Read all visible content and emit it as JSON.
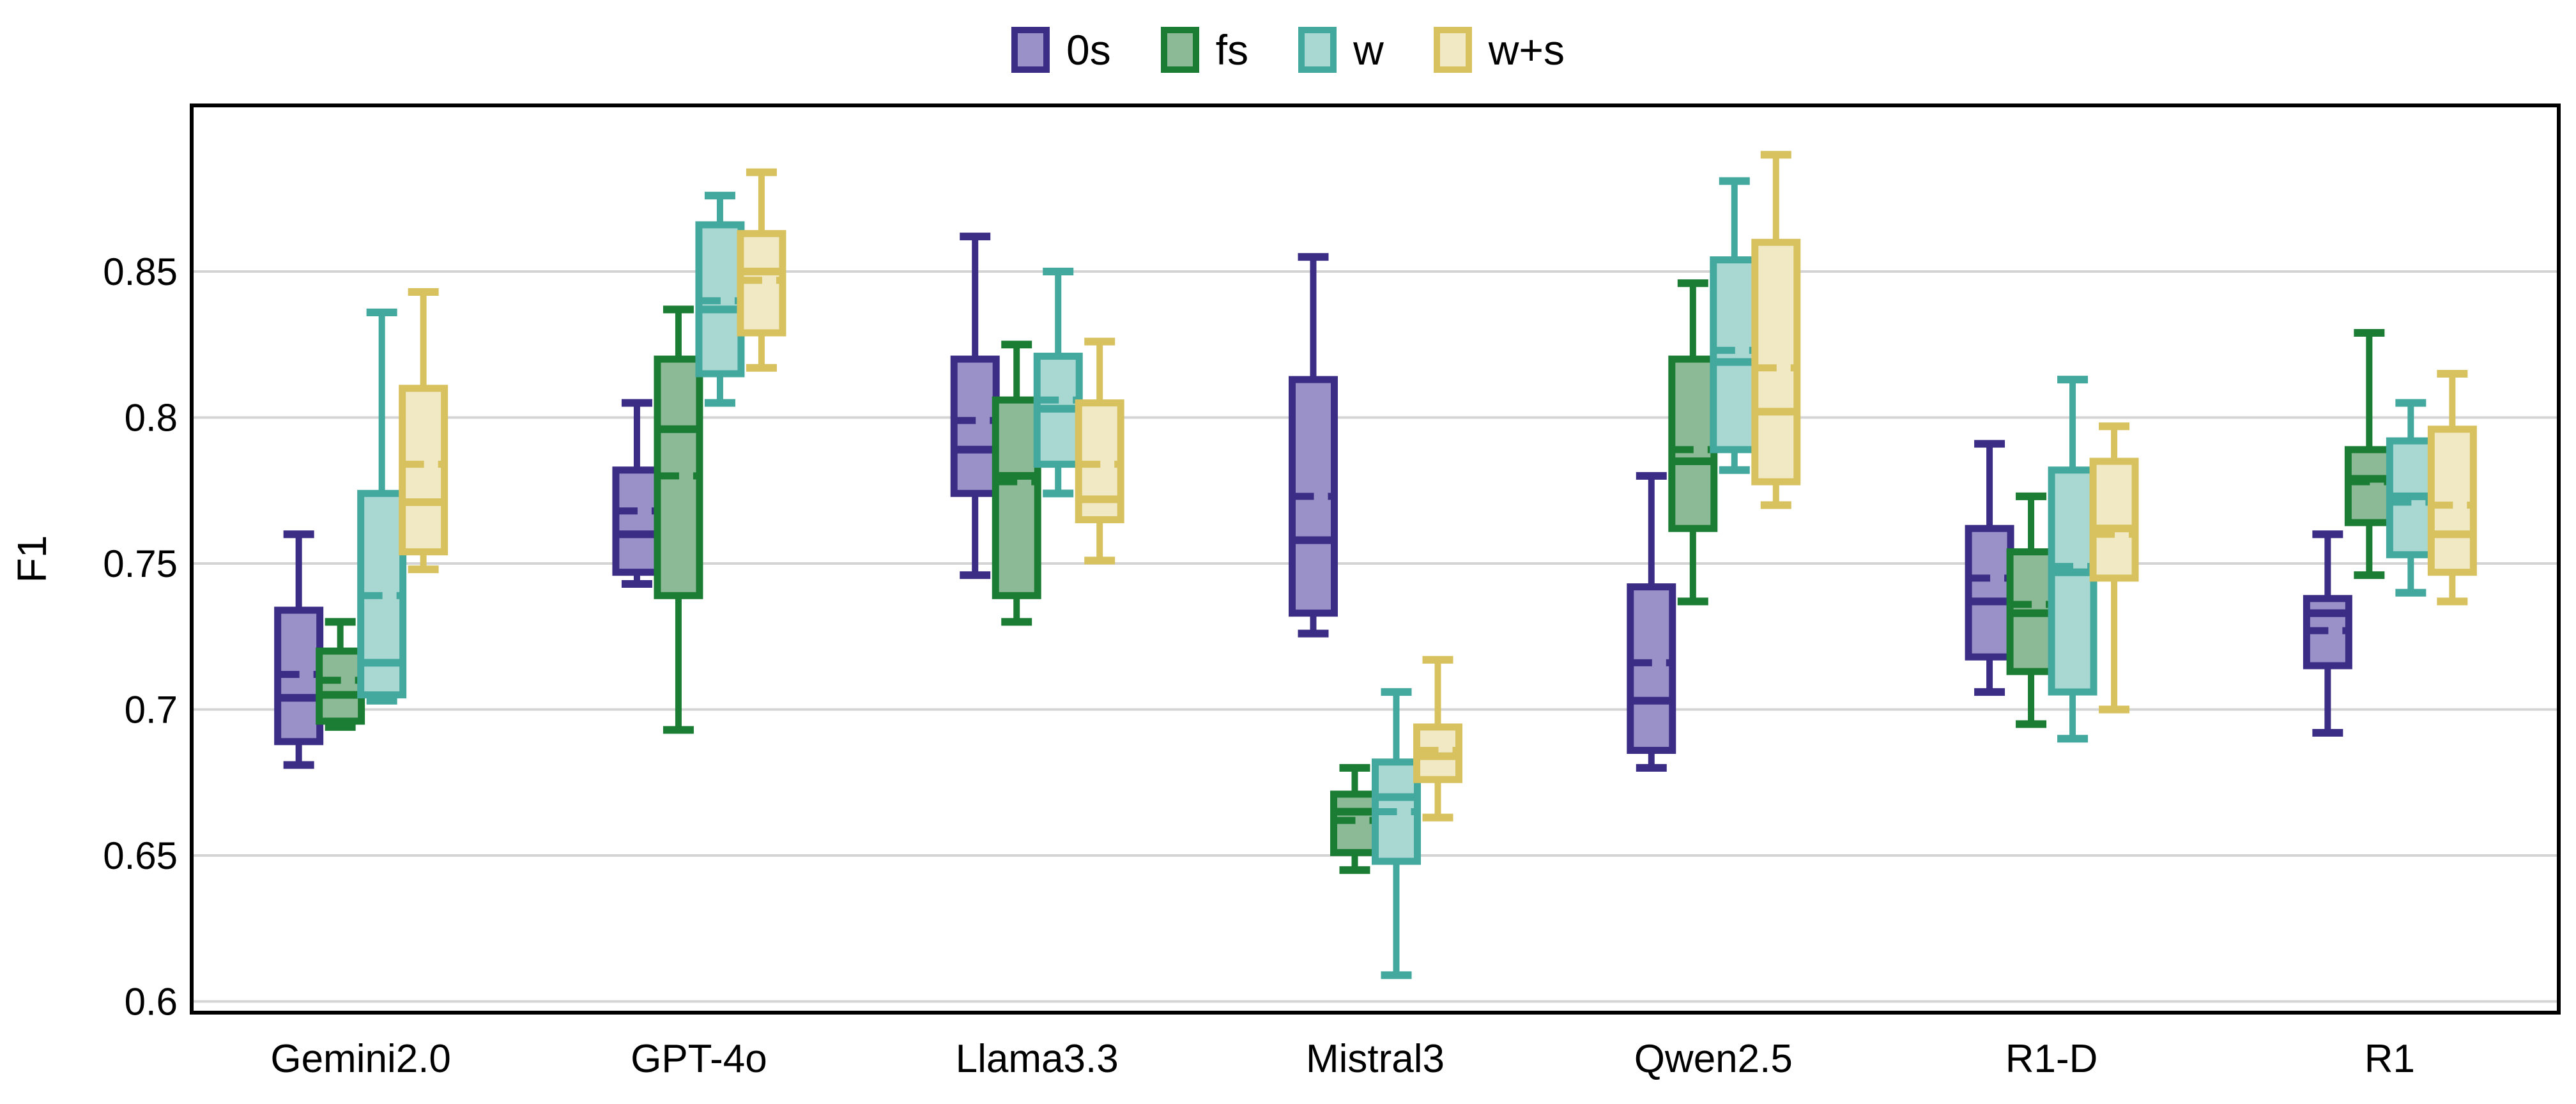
{
  "figure": {
    "y_axis_title": "F1",
    "x_axis_title": ""
  },
  "chart_data": {
    "type": "box",
    "title": "",
    "ylabel": "F1",
    "xlabel": "",
    "grid": "horizontal",
    "legend_position": "top-center",
    "ylim": [
      0.594,
      0.907
    ],
    "yticks": [
      {
        "value": 0.85,
        "label": "0.85"
      },
      {
        "value": 0.8,
        "label": "0.8"
      },
      {
        "value": 0.75,
        "label": "0.75"
      },
      {
        "value": 0.7,
        "label": "0.7"
      },
      {
        "value": 0.65,
        "label": "0.65"
      },
      {
        "value": 0.6,
        "label": "0.6"
      }
    ],
    "categories": [
      "Gemini2.0",
      "GPT-4o",
      "Llama3.3",
      "Mistral3",
      "Qwen2.5",
      "R1-D",
      "R1"
    ],
    "series": [
      {
        "name": "0s",
        "edge_color": "#3b2c85",
        "fill_color": "#9a91c8",
        "boxes": [
          {
            "lo": 0.681,
            "q1": 0.689,
            "med": 0.704,
            "mean": 0.712,
            "q3": 0.734,
            "hi": 0.76
          },
          {
            "lo": 0.743,
            "q1": 0.747,
            "med": 0.76,
            "mean": 0.768,
            "q3": 0.782,
            "hi": 0.805
          },
          {
            "lo": 0.746,
            "q1": 0.774,
            "med": 0.789,
            "mean": 0.799,
            "q3": 0.82,
            "hi": 0.862
          },
          {
            "lo": 0.726,
            "q1": 0.733,
            "med": 0.758,
            "mean": 0.773,
            "q3": 0.813,
            "hi": 0.855
          },
          {
            "lo": 0.68,
            "q1": 0.686,
            "med": 0.703,
            "mean": 0.716,
            "q3": 0.742,
            "hi": 0.78
          },
          {
            "lo": 0.706,
            "q1": 0.718,
            "med": 0.737,
            "mean": 0.745,
            "q3": 0.762,
            "hi": 0.791
          },
          {
            "lo": 0.692,
            "q1": 0.715,
            "med": 0.733,
            "mean": 0.727,
            "q3": 0.738,
            "hi": 0.76
          }
        ]
      },
      {
        "name": "fs",
        "edge_color": "#1a7d33",
        "fill_color": "#8cb996",
        "boxes": [
          {
            "lo": 0.694,
            "q1": 0.696,
            "med": 0.705,
            "mean": 0.71,
            "q3": 0.72,
            "hi": 0.73
          },
          {
            "lo": 0.693,
            "q1": 0.739,
            "med": 0.796,
            "mean": 0.78,
            "q3": 0.82,
            "hi": 0.837
          },
          {
            "lo": 0.73,
            "q1": 0.739,
            "med": 0.78,
            "mean": 0.778,
            "q3": 0.806,
            "hi": 0.825
          },
          {
            "lo": 0.645,
            "q1": 0.651,
            "med": 0.665,
            "mean": 0.662,
            "q3": 0.671,
            "hi": 0.68
          },
          {
            "lo": 0.737,
            "q1": 0.762,
            "med": 0.785,
            "mean": 0.789,
            "q3": 0.82,
            "hi": 0.846
          },
          {
            "lo": 0.695,
            "q1": 0.713,
            "med": 0.733,
            "mean": 0.736,
            "q3": 0.754,
            "hi": 0.773
          },
          {
            "lo": 0.746,
            "q1": 0.764,
            "med": 0.779,
            "mean": 0.778,
            "q3": 0.789,
            "hi": 0.829
          }
        ]
      },
      {
        "name": "w",
        "edge_color": "#43a89e",
        "fill_color": "#a9d8d3",
        "boxes": [
          {
            "lo": 0.703,
            "q1": 0.705,
            "med": 0.716,
            "mean": 0.739,
            "q3": 0.774,
            "hi": 0.836
          },
          {
            "lo": 0.805,
            "q1": 0.815,
            "med": 0.837,
            "mean": 0.84,
            "q3": 0.866,
            "hi": 0.876
          },
          {
            "lo": 0.774,
            "q1": 0.784,
            "med": 0.803,
            "mean": 0.806,
            "q3": 0.821,
            "hi": 0.85
          },
          {
            "lo": 0.609,
            "q1": 0.648,
            "med": 0.67,
            "mean": 0.665,
            "q3": 0.682,
            "hi": 0.706
          },
          {
            "lo": 0.782,
            "q1": 0.789,
            "med": 0.819,
            "mean": 0.823,
            "q3": 0.854,
            "hi": 0.881
          },
          {
            "lo": 0.69,
            "q1": 0.706,
            "med": 0.747,
            "mean": 0.749,
            "q3": 0.782,
            "hi": 0.813
          },
          {
            "lo": 0.74,
            "q1": 0.753,
            "med": 0.773,
            "mean": 0.771,
            "q3": 0.792,
            "hi": 0.805
          }
        ]
      },
      {
        "name": "w+s",
        "edge_color": "#d8c25f",
        "fill_color": "#f0e9c4",
        "boxes": [
          {
            "lo": 0.748,
            "q1": 0.754,
            "med": 0.771,
            "mean": 0.784,
            "q3": 0.81,
            "hi": 0.843
          },
          {
            "lo": 0.817,
            "q1": 0.829,
            "med": 0.85,
            "mean": 0.847,
            "q3": 0.863,
            "hi": 0.884
          },
          {
            "lo": 0.751,
            "q1": 0.765,
            "med": 0.772,
            "mean": 0.784,
            "q3": 0.805,
            "hi": 0.826
          },
          {
            "lo": 0.663,
            "q1": 0.676,
            "med": 0.684,
            "mean": 0.686,
            "q3": 0.694,
            "hi": 0.717
          },
          {
            "lo": 0.77,
            "q1": 0.778,
            "med": 0.802,
            "mean": 0.817,
            "q3": 0.86,
            "hi": 0.89
          },
          {
            "lo": 0.7,
            "q1": 0.745,
            "med": 0.762,
            "mean": 0.76,
            "q3": 0.785,
            "hi": 0.797
          },
          {
            "lo": 0.737,
            "q1": 0.747,
            "med": 0.76,
            "mean": 0.77,
            "q3": 0.796,
            "hi": 0.815
          }
        ]
      }
    ],
    "style": {
      "grid_color": "#d4d4d4",
      "spine_color": "#000000",
      "background": "#ffffff"
    }
  },
  "layout_note": "static chart figure - no interactive controls visible"
}
